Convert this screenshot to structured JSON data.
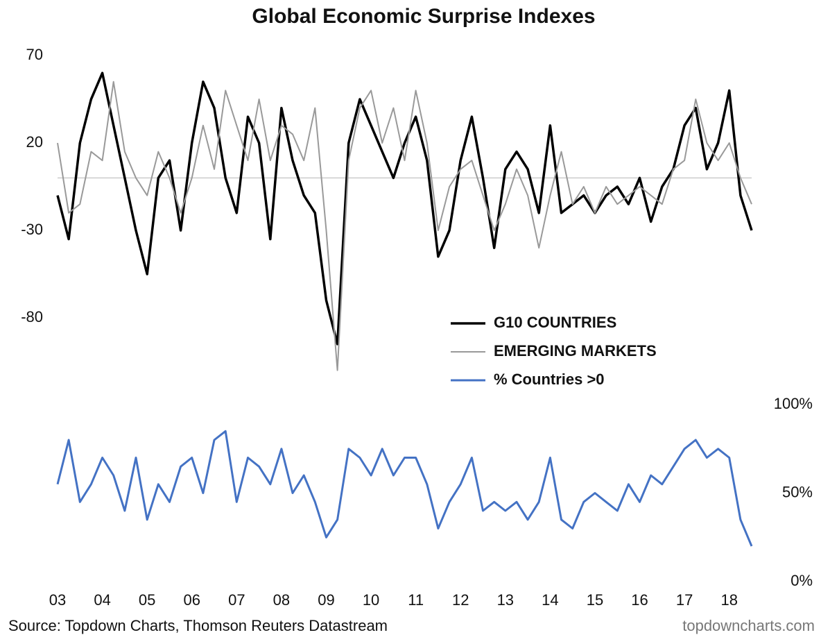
{
  "chart_data": {
    "type": "line",
    "title": "Global Economic Surprise Indexes",
    "source": "Source: Topdown Charts, Thomson Reuters Datastream",
    "brand": "topdowncharts.com",
    "x": [
      2003,
      2003.25,
      2003.5,
      2003.75,
      2004,
      2004.25,
      2004.5,
      2004.75,
      2005,
      2005.25,
      2005.5,
      2005.75,
      2006,
      2006.25,
      2006.5,
      2006.75,
      2007,
      2007.25,
      2007.5,
      2007.75,
      2008,
      2008.25,
      2008.5,
      2008.75,
      2009,
      2009.25,
      2009.5,
      2009.75,
      2010,
      2010.25,
      2010.5,
      2010.75,
      2011,
      2011.25,
      2011.5,
      2011.75,
      2012,
      2012.25,
      2012.5,
      2012.75,
      2013,
      2013.25,
      2013.5,
      2013.75,
      2014,
      2014.25,
      2014.5,
      2014.75,
      2015,
      2015.25,
      2015.5,
      2015.75,
      2016,
      2016.25,
      2016.5,
      2016.75,
      2017,
      2017.25,
      2017.5,
      2017.75,
      2018,
      2018.25,
      2018.5
    ],
    "series": [
      {
        "name": "G10 COUNTRIES",
        "color": "#000000",
        "values": [
          -10,
          -35,
          20,
          45,
          60,
          30,
          0,
          -30,
          -55,
          0,
          10,
          -30,
          20,
          55,
          40,
          0,
          -20,
          35,
          20,
          -35,
          40,
          10,
          -10,
          -20,
          -70,
          -95,
          20,
          45,
          30,
          15,
          0,
          20,
          35,
          10,
          -45,
          -30,
          10,
          35,
          0,
          -40,
          5,
          15,
          5,
          -20,
          30,
          -20,
          -15,
          -10,
          -20,
          -10,
          -5,
          -15,
          0,
          -25,
          -5,
          5,
          30,
          40,
          5,
          20,
          50,
          -10,
          -30
        ]
      },
      {
        "name": "EMERGING MARKETS",
        "color": "#999999",
        "values": [
          20,
          -20,
          -15,
          15,
          10,
          55,
          15,
          0,
          -10,
          15,
          0,
          -20,
          0,
          30,
          5,
          50,
          30,
          10,
          45,
          10,
          30,
          25,
          10,
          40,
          -30,
          -110,
          10,
          40,
          50,
          20,
          40,
          10,
          50,
          20,
          -30,
          -5,
          5,
          10,
          -10,
          -30,
          -15,
          5,
          -10,
          -40,
          -10,
          15,
          -15,
          -5,
          -20,
          -5,
          -15,
          -10,
          -5,
          -10,
          -15,
          5,
          10,
          45,
          20,
          10,
          20,
          0,
          -15
        ]
      },
      {
        "name": "% Countries >0",
        "color": "#4472c4",
        "axis": "y2",
        "values": [
          55,
          80,
          45,
          55,
          70,
          60,
          40,
          70,
          35,
          55,
          45,
          65,
          70,
          50,
          80,
          85,
          45,
          70,
          65,
          55,
          75,
          50,
          60,
          45,
          25,
          35,
          75,
          70,
          60,
          75,
          60,
          70,
          70,
          55,
          30,
          45,
          55,
          70,
          40,
          45,
          40,
          45,
          35,
          45,
          70,
          35,
          30,
          45,
          50,
          45,
          40,
          55,
          45,
          60,
          55,
          65,
          75,
          80,
          70,
          75,
          70,
          35,
          20
        ]
      }
    ],
    "xlim": [
      2003,
      2018.5
    ],
    "xticks": [
      {
        "value": 2003,
        "label": "03"
      },
      {
        "value": 2004,
        "label": "04"
      },
      {
        "value": 2005,
        "label": "05"
      },
      {
        "value": 2006,
        "label": "06"
      },
      {
        "value": 2007,
        "label": "07"
      },
      {
        "value": 2008,
        "label": "08"
      },
      {
        "value": 2009,
        "label": "09"
      },
      {
        "value": 2010,
        "label": "10"
      },
      {
        "value": 2011,
        "label": "11"
      },
      {
        "value": 2012,
        "label": "12"
      },
      {
        "value": 2013,
        "label": "13"
      },
      {
        "value": 2014,
        "label": "14"
      },
      {
        "value": 2015,
        "label": "15"
      },
      {
        "value": 2016,
        "label": "16"
      },
      {
        "value": 2017,
        "label": "17"
      },
      {
        "value": 2018,
        "label": "18"
      }
    ],
    "ylim": [
      -130,
      70
    ],
    "yticks": [
      -80,
      -30,
      20,
      70
    ],
    "hline": 0,
    "y2lim": [
      0,
      100
    ],
    "y2ticks": [
      {
        "value": 0,
        "label": "0%"
      },
      {
        "value": 50,
        "label": "50%"
      },
      {
        "value": 100,
        "label": "100%"
      }
    ]
  }
}
